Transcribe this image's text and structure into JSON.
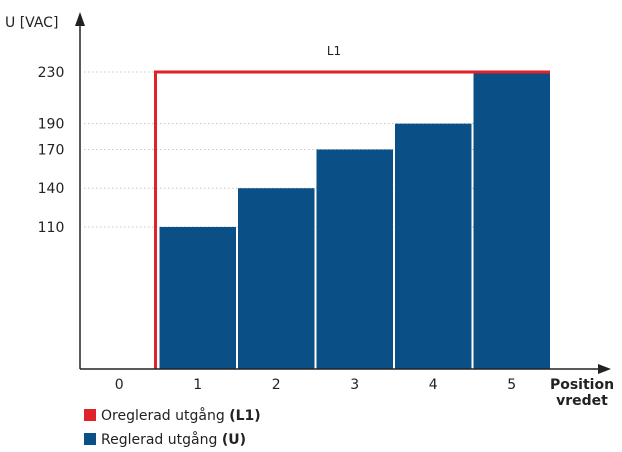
{
  "chart_data": {
    "type": "bar",
    "ylabel": "U [VAC]",
    "xlabel": [
      "Position",
      "vredet"
    ],
    "categories": [
      "0",
      "1",
      "2",
      "3",
      "4",
      "5"
    ],
    "yticks": [
      110,
      140,
      170,
      190,
      230
    ],
    "ylim": [
      0,
      230
    ],
    "grid": "horizontal-dotted",
    "series": [
      {
        "name": "Reglerad utgång (U)",
        "type": "bar",
        "color": "#0a4f86",
        "values": [
          0,
          110,
          140,
          170,
          190,
          230
        ]
      },
      {
        "name": "Oreglerad utgång (L1)",
        "type": "line-step",
        "color": "#e0222b",
        "values": [
          0,
          230,
          230,
          230,
          230,
          230
        ]
      }
    ],
    "annotations": [
      "L1"
    ]
  },
  "legend": {
    "items": [
      {
        "text": "Oreglerad utgång ",
        "bold": "(L1)",
        "color": "#e0222b"
      },
      {
        "text": "Reglerad utgång ",
        "bold": "(U)",
        "color": "#0a4f86"
      }
    ]
  }
}
